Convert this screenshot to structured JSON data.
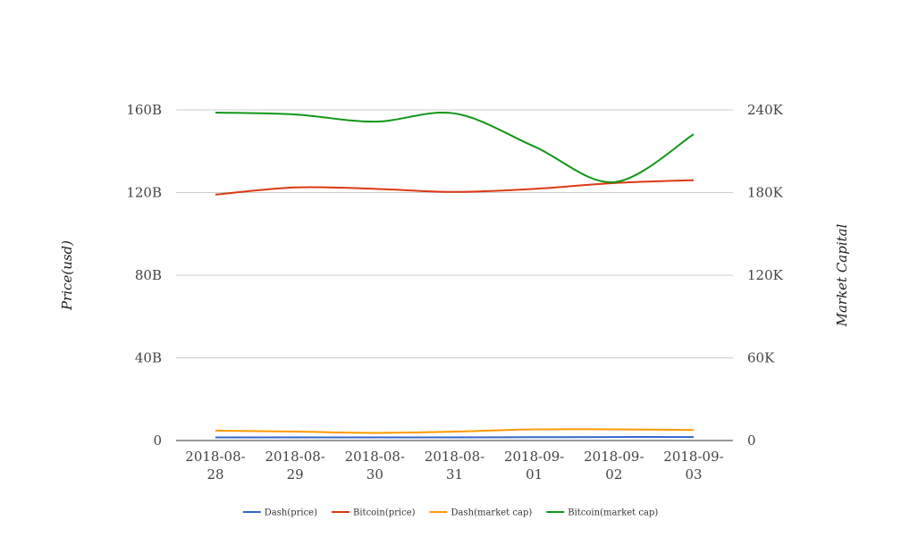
{
  "chart_data": {
    "type": "line",
    "x": [
      "2018-08-28",
      "2018-08-29",
      "2018-08-30",
      "2018-08-31",
      "2018-09-01",
      "2018-09-02",
      "2018-09-03"
    ],
    "x_tick_labels": [
      [
        "2018-08-",
        "28"
      ],
      [
        "2018-08-",
        "29"
      ],
      [
        "2018-08-",
        "30"
      ],
      [
        "2018-08-",
        "31"
      ],
      [
        "2018-09-",
        "01"
      ],
      [
        "2018-09-",
        "02"
      ],
      [
        "2018-09-",
        "03"
      ]
    ],
    "y_left": {
      "label": "Price(usd)",
      "range": [
        0,
        160000000000
      ],
      "ticks": [
        0,
        40000000000,
        80000000000,
        120000000000,
        160000000000
      ],
      "tick_labels": [
        "0",
        "40B",
        "80B",
        "120B",
        "160B"
      ]
    },
    "y_right": {
      "label": "Market Capital",
      "range": [
        0,
        240000
      ],
      "ticks": [
        0,
        60000,
        120000,
        180000,
        240000
      ],
      "tick_labels": [
        "0",
        "60K",
        "120K",
        "180K",
        "240K"
      ]
    },
    "grid": true,
    "legend_position": "bottom",
    "series": [
      {
        "name": "Dash(price)",
        "axis": "left",
        "color": "#3366cc",
        "values": [
          1500000000,
          1500000000,
          1500000000,
          1500000000,
          1600000000,
          1700000000,
          1700000000
        ]
      },
      {
        "name": "Bitcoin(price)",
        "axis": "left",
        "color": "#dc3912",
        "values": [
          119000000000,
          122500000000,
          121800000000,
          120300000000,
          121800000000,
          124600000000,
          126000000000
        ]
      },
      {
        "name": "Dash(market cap)",
        "axis": "left",
        "color": "#ff9900",
        "values": [
          4800000000,
          4300000000,
          3700000000,
          4300000000,
          5400000000,
          5400000000,
          5100000000
        ]
      },
      {
        "name": "Bitcoin(market cap)",
        "axis": "left",
        "color": "#109618",
        "values": [
          158700000000,
          157800000000,
          154300000000,
          158300000000,
          142300000000,
          125000000000,
          148200000000
        ]
      }
    ]
  }
}
